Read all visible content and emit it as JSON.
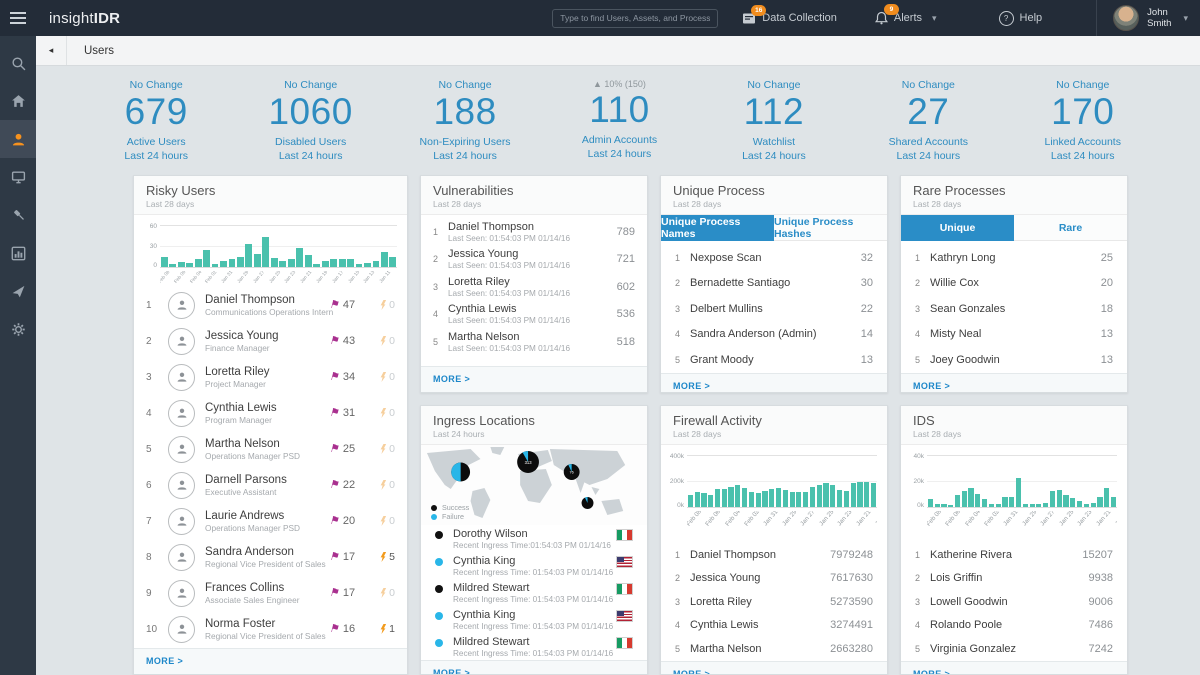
{
  "topbar": {
    "logo_light": "insight",
    "logo_bold": "IDR",
    "search_placeholder": "Type to find Users, Assets, and Processes",
    "data_collection_label": "Data Collection",
    "data_collection_badge": "16",
    "alerts_label": "Alerts",
    "alerts_badge": "9",
    "help_label": "Help",
    "user_first": "John",
    "user_last": "Smith"
  },
  "sidebar": {
    "icons": [
      "search",
      "home",
      "users",
      "endpoints",
      "investigations",
      "reports",
      "connections",
      "settings"
    ],
    "active": "users"
  },
  "breadcrumb": {
    "title": "Users"
  },
  "stats": [
    {
      "change": "No Change",
      "variant": "blue",
      "value": "679",
      "label": "Active Users",
      "period": "Last 24 hours"
    },
    {
      "change": "No Change",
      "variant": "blue",
      "value": "1060",
      "label": "Disabled Users",
      "period": "Last 24 hours"
    },
    {
      "change": "No Change",
      "variant": "blue",
      "value": "188",
      "label": "Non-Expiring Users",
      "period": "Last 24 hours"
    },
    {
      "change": "▲ 10% (150)",
      "variant": "gray",
      "value": "110",
      "label": "Admin Accounts",
      "period": "Last 24 hours"
    },
    {
      "change": "No Change",
      "variant": "blue",
      "value": "112",
      "label": "Watchlist",
      "period": "Last 24 hours"
    },
    {
      "change": "No Change",
      "variant": "blue",
      "value": "27",
      "label": "Shared Accounts",
      "period": "Last 24 hours"
    },
    {
      "change": "No Change",
      "variant": "blue",
      "value": "170",
      "label": "Linked Accounts",
      "period": "Last 24 hours"
    }
  ],
  "risky_users": {
    "title": "Risky Users",
    "subtitle": "Last 28 days",
    "more": "MORE >",
    "chart": {
      "type": "bar",
      "max": 60,
      "yticks": [
        "60",
        "30",
        "0"
      ],
      "values": [
        15,
        4,
        7,
        6,
        11,
        24,
        4,
        9,
        11,
        15,
        33,
        18,
        43,
        13,
        9,
        11,
        27,
        17,
        5,
        9,
        11,
        12,
        11,
        4,
        6,
        9,
        21,
        15
      ],
      "xlabels": [
        "Feb 08",
        "Feb 06",
        "Feb 04",
        "Feb 02",
        "Jan 31",
        "Jan 29",
        "Jan 27",
        "Jan 25",
        "Jan 23",
        "Jan 21",
        "Jan 19",
        "Jan 17",
        "Jan 15",
        "Jan 13",
        "Jan 11"
      ]
    },
    "rows": [
      {
        "rank": "1",
        "name": "Daniel Thompson",
        "role": "Communications Operations Intern",
        "flags": "47",
        "bolts": "0",
        "bolt_state": "zero"
      },
      {
        "rank": "2",
        "name": "Jessica Young",
        "role": "Finance Manager",
        "flags": "43",
        "bolts": "0",
        "bolt_state": "zero"
      },
      {
        "rank": "3",
        "name": "Loretta Riley",
        "role": "Project Manager",
        "flags": "34",
        "bolts": "0",
        "bolt_state": "zero"
      },
      {
        "rank": "4",
        "name": "Cynthia Lewis",
        "role": "Program Manager",
        "flags": "31",
        "bolts": "0",
        "bolt_state": "zero"
      },
      {
        "rank": "5",
        "name": "Martha Nelson",
        "role": "Operations Manager PSD",
        "flags": "25",
        "bolts": "0",
        "bolt_state": "zero"
      },
      {
        "rank": "6",
        "name": "Darnell Parsons",
        "role": "Executive Assistant",
        "flags": "22",
        "bolts": "0",
        "bolt_state": "zero"
      },
      {
        "rank": "7",
        "name": "Laurie Andrews",
        "role": "Operations Manager PSD",
        "flags": "20",
        "bolts": "0",
        "bolt_state": "zero"
      },
      {
        "rank": "8",
        "name": "Sandra Anderson",
        "role": "Regional Vice President of Sales",
        "flags": "17",
        "bolts": "5",
        "bolt_state": "active"
      },
      {
        "rank": "9",
        "name": "Frances Collins",
        "role": "Associate Sales Engineer",
        "flags": "17",
        "bolts": "0",
        "bolt_state": "zero"
      },
      {
        "rank": "10",
        "name": "Norma Foster",
        "role": "Regional Vice President of Sales",
        "flags": "16",
        "bolts": "1",
        "bolt_state": "active"
      }
    ]
  },
  "vulnerabilities": {
    "title": "Vulnerabilities",
    "subtitle": "Last 28 days",
    "more": "MORE >",
    "rows": [
      {
        "rank": "1",
        "name": "Daniel Thompson",
        "meta": "Last Seen: 01:54:03 PM 01/14/16",
        "value": "789"
      },
      {
        "rank": "2",
        "name": "Jessica Young",
        "meta": "Last Seen: 01:54:03 PM 01/14/16",
        "value": "721"
      },
      {
        "rank": "3",
        "name": "Loretta Riley",
        "meta": "Last Seen: 01:54:03 PM 01/14/16",
        "value": "602"
      },
      {
        "rank": "4",
        "name": "Cynthia Lewis",
        "meta": "Last Seen: 01:54:03 PM 01/14/16",
        "value": "536"
      },
      {
        "rank": "5",
        "name": "Martha Nelson",
        "meta": "Last Seen: 01:54:03 PM 01/14/16",
        "value": "518"
      }
    ]
  },
  "unique_process": {
    "title": "Unique Process",
    "subtitle": "Last 28 days",
    "more": "MORE >",
    "tabs": [
      {
        "label": "Unique Process Names",
        "state": "active"
      },
      {
        "label": "Unique Process Hashes",
        "state": "inactive"
      }
    ],
    "rows": [
      {
        "rank": "1",
        "name": "Nexpose Scan",
        "value": "32"
      },
      {
        "rank": "2",
        "name": "Bernadette Santiago",
        "value": "30"
      },
      {
        "rank": "3",
        "name": "Delbert Mullins",
        "value": "22"
      },
      {
        "rank": "4",
        "name": "Sandra Anderson (Admin)",
        "value": "14"
      },
      {
        "rank": "5",
        "name": "Grant Moody",
        "value": "13"
      }
    ]
  },
  "rare_processes": {
    "title": "Rare Processes",
    "subtitle": "Last 28 days",
    "more": "MORE >",
    "tabs": [
      {
        "label": "Unique",
        "state": "active"
      },
      {
        "label": "Rare",
        "state": "inactive"
      }
    ],
    "rows": [
      {
        "rank": "1",
        "name": "Kathryn Long",
        "value": "25"
      },
      {
        "rank": "2",
        "name": "Willie Cox",
        "value": "20"
      },
      {
        "rank": "3",
        "name": "Sean Gonzales",
        "value": "18"
      },
      {
        "rank": "4",
        "name": "Misty Neal",
        "value": "13"
      },
      {
        "rank": "5",
        "name": "Joey Goodwin",
        "value": "13"
      }
    ]
  },
  "ingress": {
    "title": "Ingress Locations",
    "subtitle": "Last 24 hours",
    "more": "MORE >",
    "legend": [
      {
        "label": "Success",
        "color": "black"
      },
      {
        "label": "Failure",
        "color": "cyan"
      }
    ],
    "map": {
      "eu_label": "313",
      "asia_label": "76"
    },
    "rows": [
      {
        "name": "Dorothy Wilson",
        "meta": "Recent Ingress Time:01:54:03 PM 01/14/16",
        "dot": "black",
        "flag": "it"
      },
      {
        "name": "Cynthia King",
        "meta": "Recent Ingress Time: 01:54:03 PM 01/14/16",
        "dot": "cyan",
        "flag": "us"
      },
      {
        "name": "Mildred Stewart",
        "meta": "Recent Ingress Time: 01:54:03 PM 01/14/16",
        "dot": "black",
        "flag": "it"
      },
      {
        "name": "Cynthia King",
        "meta": "Recent Ingress Time: 01:54:03 PM 01/14/16",
        "dot": "cyan",
        "flag": "us"
      },
      {
        "name": "Mildred Stewart",
        "meta": "Recent Ingress Time: 01:54:03 PM 01/14/16",
        "dot": "cyan",
        "flag": "it"
      }
    ]
  },
  "firewall": {
    "title": "Firewall Activity",
    "subtitle": "Last 28 days",
    "more": "MORE >",
    "chart": {
      "type": "bar",
      "max": 400,
      "yticks": [
        "400k",
        "200k",
        "0k"
      ],
      "values": [
        95,
        118,
        108,
        92,
        138,
        142,
        152,
        168,
        150,
        112,
        108,
        125,
        142,
        148,
        132,
        118,
        115,
        112,
        152,
        172,
        188,
        170,
        132,
        125,
        182,
        192,
        196,
        186
      ],
      "xlabels": [
        "Feb 08",
        "Feb 06",
        "Feb 04",
        "Feb 02",
        "Jan 31",
        "Jan 29",
        "Jan 27",
        "Jan 25",
        "Jan 23",
        "Jan 21",
        "Jan 19",
        "Jan 17",
        "Jan 15",
        "Jan 13",
        "Jan 11"
      ]
    },
    "rows": [
      {
        "rank": "1",
        "name": "Daniel Thompson",
        "value": "7979248"
      },
      {
        "rank": "2",
        "name": "Jessica Young",
        "value": "7617630"
      },
      {
        "rank": "3",
        "name": "Loretta Riley",
        "value": "5273590"
      },
      {
        "rank": "4",
        "name": "Cynthia Lewis",
        "value": "3274491"
      },
      {
        "rank": "5",
        "name": "Martha Nelson",
        "value": "2663280"
      }
    ]
  },
  "ids": {
    "title": "IDS",
    "subtitle": "Last 28 days",
    "more": "MORE >",
    "chart": {
      "type": "bar",
      "max": 40,
      "yticks": [
        "40k",
        "20k",
        "0k"
      ],
      "values": [
        6,
        2,
        2,
        1,
        9,
        12,
        15,
        10,
        6,
        2,
        2,
        8,
        8,
        22,
        2,
        2,
        2,
        3,
        12,
        13,
        9,
        7,
        5,
        2,
        3,
        8,
        15,
        8
      ],
      "xlabels": [
        "Feb 08",
        "Feb 06",
        "Feb 04",
        "Feb 02",
        "Jan 31",
        "Jan 29",
        "Jan 27",
        "Jan 25",
        "Jan 23",
        "Jan 21",
        "Jan 19",
        "Jan 17",
        "Jan 15",
        "Jan 13",
        "Jan 11"
      ]
    },
    "rows": [
      {
        "rank": "1",
        "name": "Katherine Rivera",
        "value": "15207"
      },
      {
        "rank": "2",
        "name": "Lois Griffin",
        "value": "9938"
      },
      {
        "rank": "3",
        "name": "Lowell Goodwin",
        "value": "9006"
      },
      {
        "rank": "4",
        "name": "Rolando Poole",
        "value": "7486"
      },
      {
        "rank": "5",
        "name": "Virginia Gonzalez",
        "value": "7242"
      }
    ]
  }
}
